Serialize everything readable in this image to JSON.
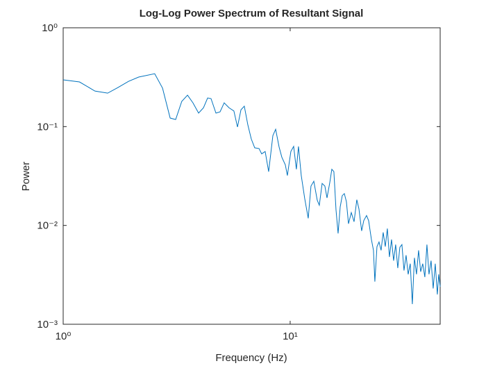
{
  "chart_data": {
    "type": "line",
    "title": "Log-Log Power Spectrum of Resultant Signal",
    "xlabel": "Frequency (Hz)",
    "ylabel": "Power",
    "xscale": "log",
    "yscale": "log",
    "color": "#0072bd",
    "xlim": [
      1,
      45.8
    ],
    "ylim": [
      0.001,
      1
    ],
    "xticks": [
      {
        "value": 1,
        "label": "10⁰"
      },
      {
        "value": 10,
        "label": "10¹"
      }
    ],
    "yticks": [
      {
        "value": 0.001,
        "label": "10⁻³"
      },
      {
        "value": 0.01,
        "label": "10⁻²"
      },
      {
        "value": 0.1,
        "label": "10⁻¹"
      },
      {
        "value": 1,
        "label": "10⁰"
      }
    ],
    "x": [
      1.0,
      1.18,
      1.38,
      1.57,
      1.74,
      1.94,
      2.15,
      2.53,
      2.74,
      2.96,
      3.13,
      3.33,
      3.53,
      3.73,
      3.95,
      4.15,
      4.33,
      4.48,
      4.71,
      4.91,
      5.12,
      5.38,
      5.65,
      5.86,
      6.07,
      6.28,
      6.51,
      6.74,
      6.98,
      7.29,
      7.49,
      7.76,
      8.04,
      8.39,
      8.63,
      8.94,
      9.19,
      9.52,
      9.72,
      10.07,
      10.36,
      10.65,
      10.88,
      11.19,
      11.59,
      12.01,
      12.35,
      12.71,
      13.16,
      13.44,
      13.83,
      14.22,
      14.53,
      14.94,
      15.26,
      15.58,
      15.92,
      16.26,
      16.61,
      16.96,
      17.32,
      17.69,
      18.07,
      18.59,
      19.12,
      19.66,
      20.09,
      20.65,
      21.1,
      21.7,
      22.16,
      22.8,
      23.28,
      23.61,
      24.12,
      24.63,
      25.15,
      25.69,
      26.24,
      26.8,
      27.37,
      27.96,
      28.56,
      29.16,
      29.79,
      30.42,
      31.07,
      31.73,
      32.41,
      33.1,
      33.81,
      34.53,
      35.27,
      36.02,
      36.79,
      37.58,
      38.38,
      39.2,
      40.04,
      40.89,
      41.76,
      42.66,
      43.57,
      44.5,
      45.12,
      45.8
    ],
    "values": [
      0.297,
      0.283,
      0.229,
      0.218,
      0.248,
      0.287,
      0.317,
      0.343,
      0.245,
      0.122,
      0.118,
      0.18,
      0.208,
      0.174,
      0.137,
      0.155,
      0.195,
      0.192,
      0.137,
      0.141,
      0.174,
      0.155,
      0.144,
      0.099,
      0.148,
      0.161,
      0.104,
      0.075,
      0.061,
      0.06,
      0.053,
      0.056,
      0.035,
      0.081,
      0.094,
      0.062,
      0.049,
      0.041,
      0.032,
      0.056,
      0.063,
      0.037,
      0.063,
      0.032,
      0.0187,
      0.0118,
      0.025,
      0.028,
      0.018,
      0.016,
      0.0266,
      0.025,
      0.019,
      0.027,
      0.037,
      0.035,
      0.0144,
      0.0083,
      0.0154,
      0.02,
      0.021,
      0.0174,
      0.0104,
      0.0135,
      0.0109,
      0.0182,
      0.0147,
      0.0088,
      0.0112,
      0.0126,
      0.0112,
      0.0072,
      0.0056,
      0.0027,
      0.0061,
      0.0068,
      0.0056,
      0.0085,
      0.0061,
      0.0093,
      0.0048,
      0.0072,
      0.0044,
      0.0064,
      0.0037,
      0.006,
      0.0064,
      0.0035,
      0.005,
      0.0032,
      0.0041,
      0.0016,
      0.0047,
      0.0032,
      0.0056,
      0.0034,
      0.0041,
      0.003,
      0.0064,
      0.0032,
      0.0044,
      0.0023,
      0.0041,
      0.002,
      0.0032,
      0.0024
    ]
  }
}
